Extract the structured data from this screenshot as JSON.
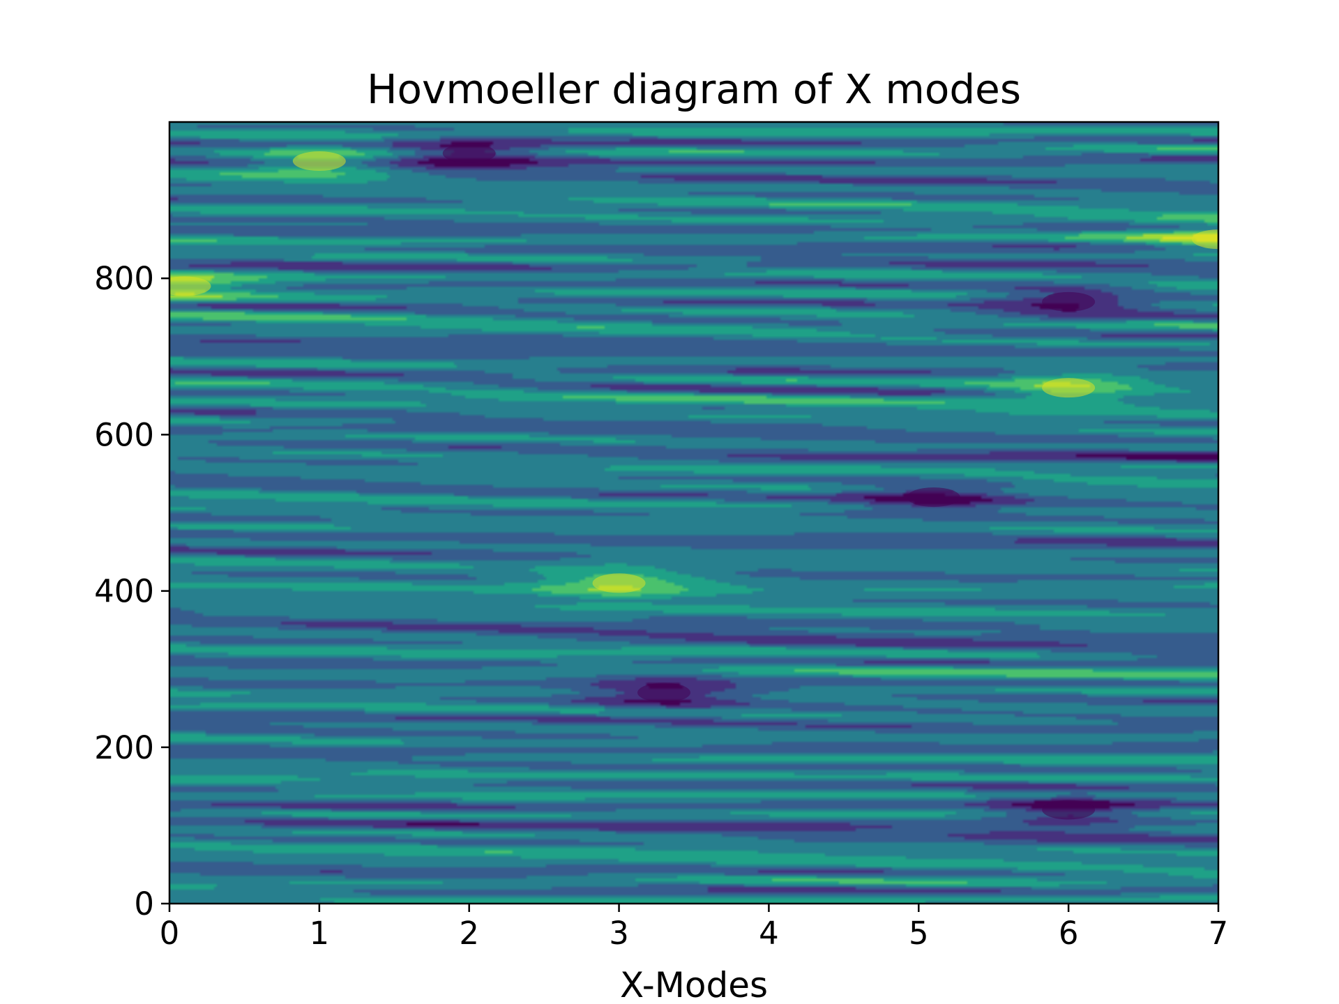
{
  "chart_data": {
    "type": "heatmap",
    "subtype": "filled-contour",
    "title": "Hovmoeller diagram of X modes",
    "xlabel": "X-Modes",
    "ylabel": "",
    "xlim": [
      0,
      7
    ],
    "ylim": [
      0,
      1000
    ],
    "x_ticks": [
      0,
      1,
      2,
      3,
      4,
      5,
      6,
      7
    ],
    "y_ticks": [
      0,
      200,
      400,
      600,
      800
    ],
    "colormap": "viridis",
    "levels": 8,
    "level_colors": [
      "#440154",
      "#46327e",
      "#365c8d",
      "#277f8e",
      "#1fa187",
      "#4ac16d",
      "#a0da39",
      "#d9e026"
    ],
    "grid": false,
    "legend": "none",
    "notable_features": [
      {
        "x": 3.0,
        "y": 410,
        "level": "high"
      },
      {
        "x": 6.0,
        "y": 660,
        "level": "high"
      },
      {
        "x": 1.0,
        "y": 950,
        "level": "high"
      },
      {
        "x": 0.1,
        "y": 790,
        "level": "high"
      },
      {
        "x": 7.0,
        "y": 850,
        "level": "high"
      },
      {
        "x": 6.0,
        "y": 120,
        "level": "low"
      },
      {
        "x": 3.3,
        "y": 270,
        "level": "low"
      },
      {
        "x": 6.0,
        "y": 770,
        "level": "low"
      },
      {
        "x": 5.1,
        "y": 520,
        "level": "low"
      },
      {
        "x": 2.0,
        "y": 960,
        "level": "low"
      }
    ]
  }
}
